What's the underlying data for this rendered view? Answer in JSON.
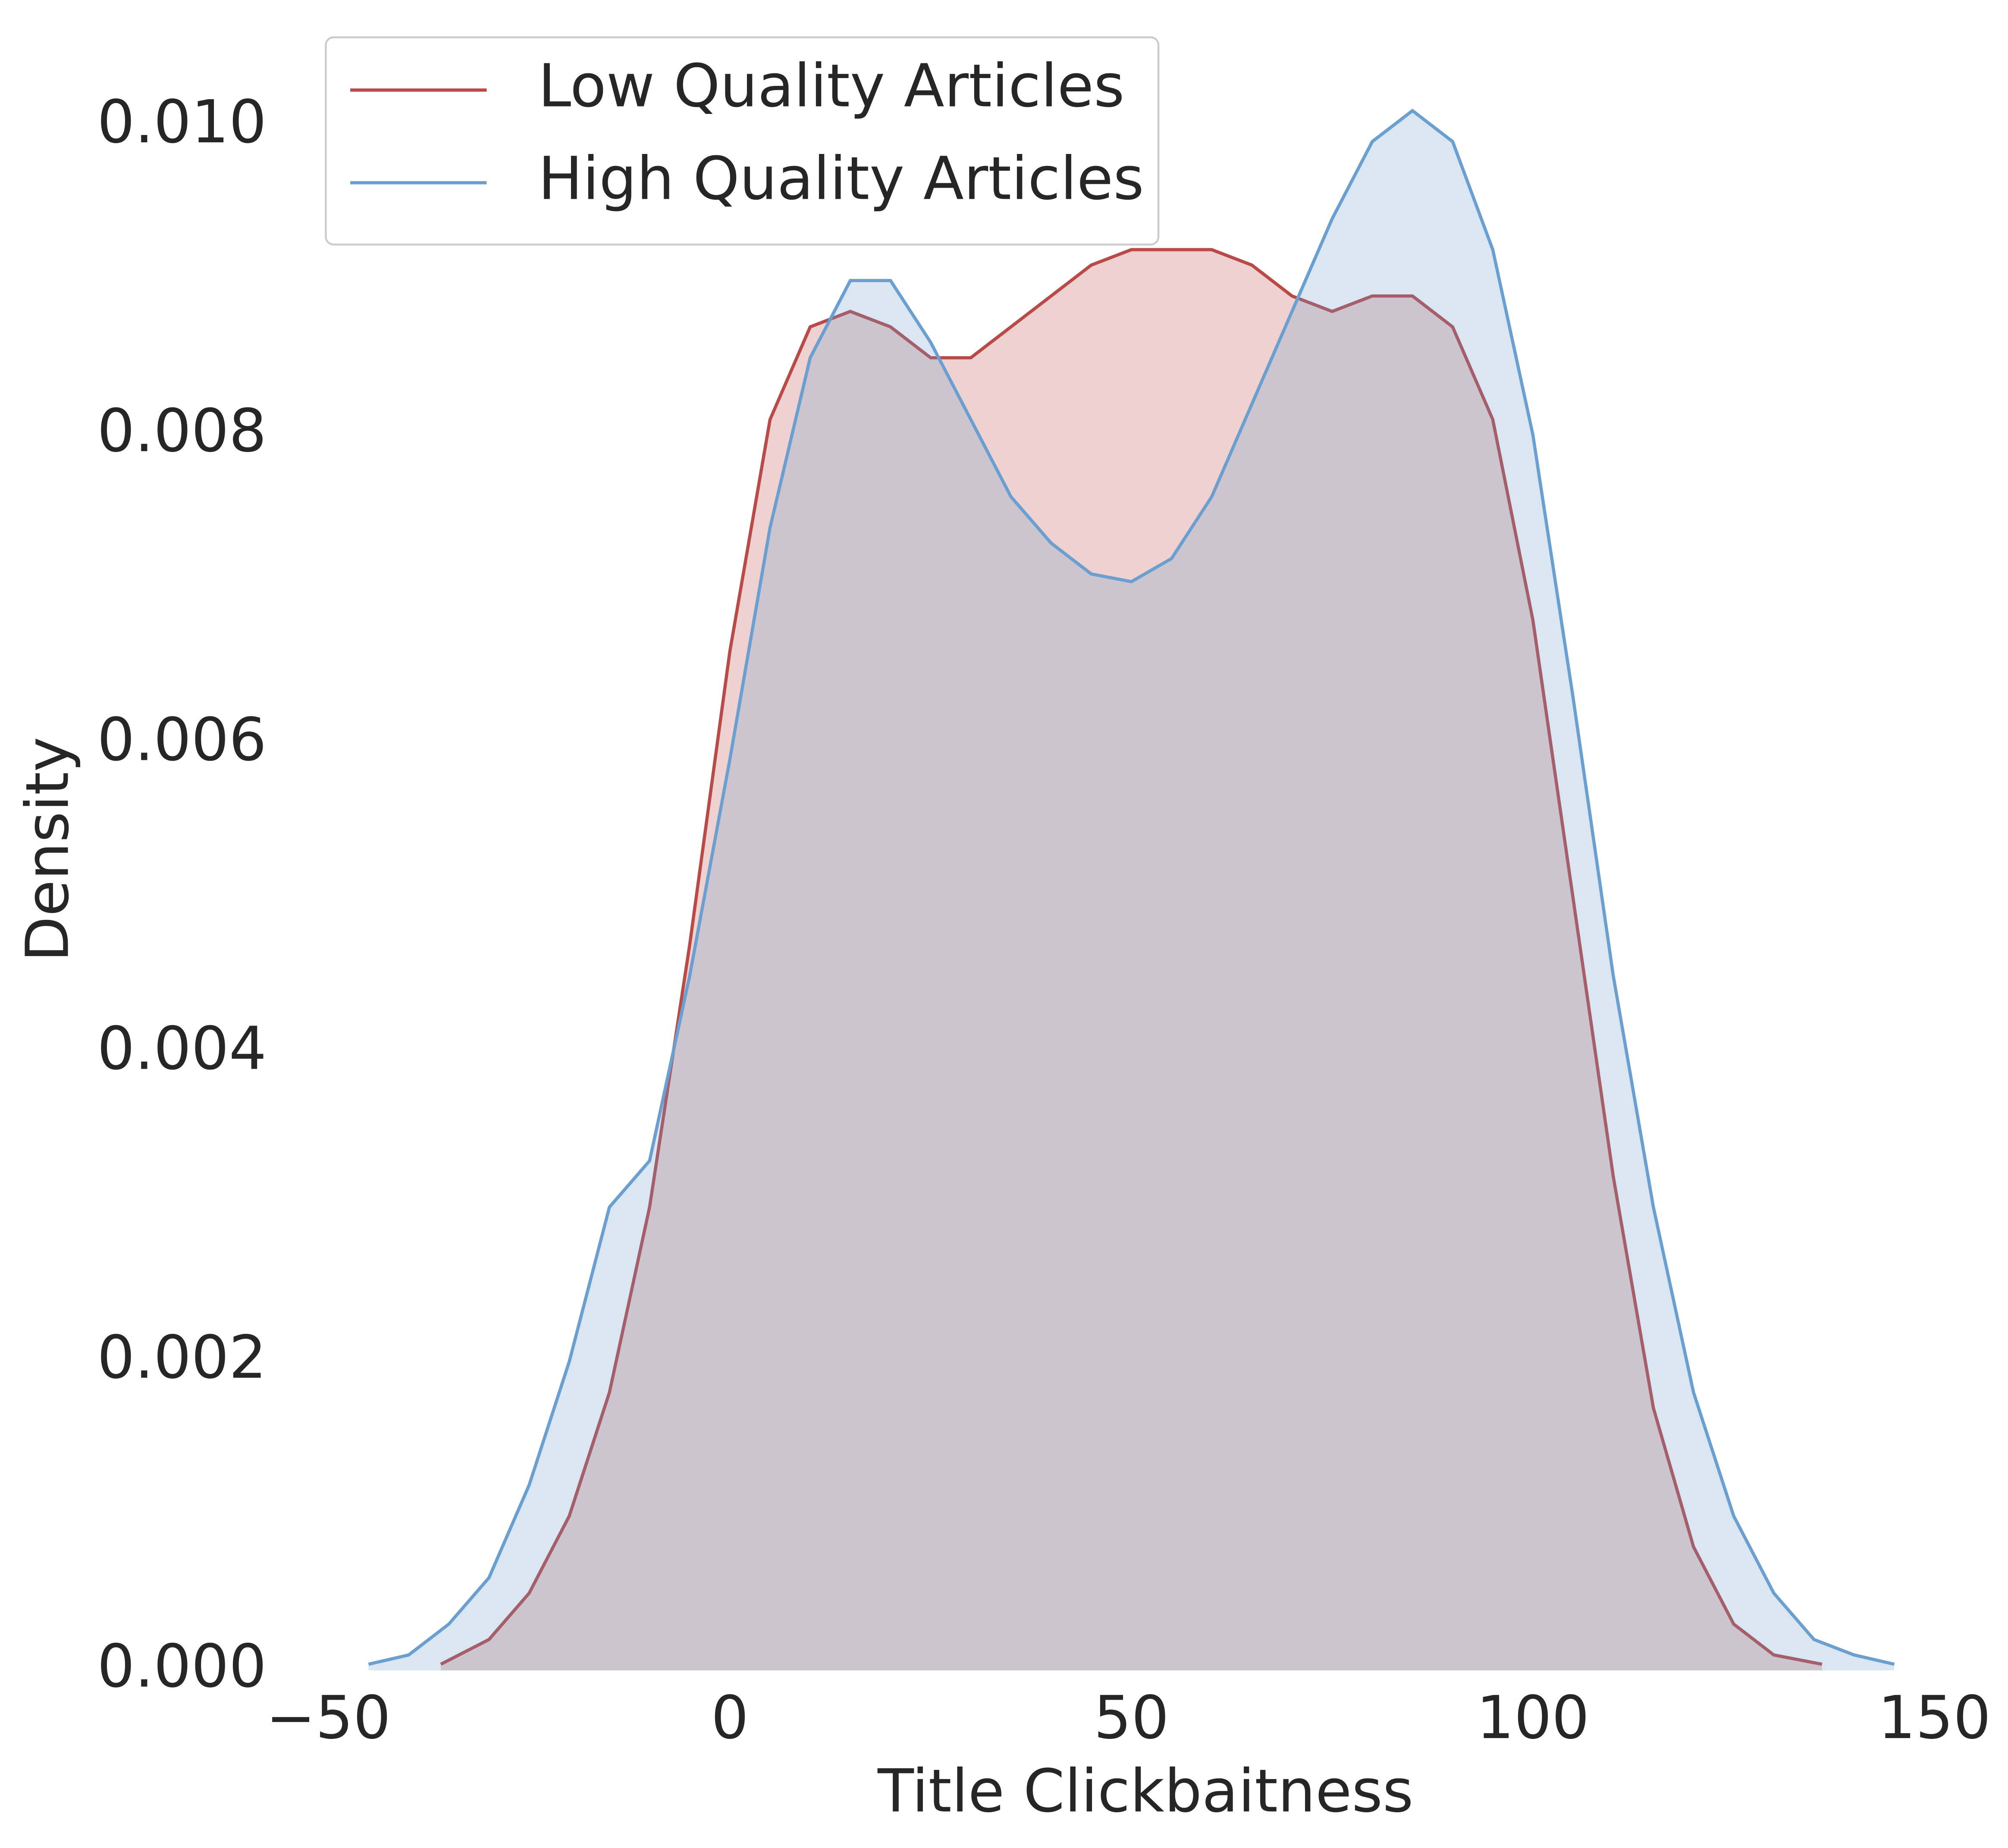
{
  "chart_data": {
    "type": "kde",
    "x_label": "Title Clickbaitness",
    "y_label": "Density",
    "xlim": [
      -50,
      150
    ],
    "ylim": [
      0,
      0.0105
    ],
    "xticks": [
      {
        "value": -50,
        "label": "−50"
      },
      0,
      50,
      100,
      150
    ],
    "yticks": [
      {
        "value": 0,
        "label": "0.000"
      },
      {
        "value": 0.002,
        "label": "0.002"
      },
      {
        "value": 0.004,
        "label": "0.004"
      },
      {
        "value": 0.006,
        "label": "0.006"
      },
      {
        "value": 0.008,
        "label": "0.008"
      },
      {
        "value": 0.01,
        "label": "0.010"
      }
    ],
    "grid": false,
    "legend": "upper left",
    "series": [
      {
        "name": "Low Quality Articles",
        "color": "#b94a48",
        "x": [
          -36,
          -30,
          -25,
          -20,
          -15,
          -10,
          -5,
          0,
          5,
          10,
          15,
          20,
          25,
          30,
          35,
          40,
          45,
          50,
          55,
          60,
          65,
          70,
          75,
          80,
          85,
          90,
          95,
          100,
          105,
          110,
          115,
          120,
          125,
          130,
          136
        ],
        "values": [
          4e-05,
          0.0002,
          0.0005,
          0.001,
          0.0018,
          0.003,
          0.0047,
          0.0066,
          0.0081,
          0.0087,
          0.0088,
          0.0087,
          0.0085,
          0.0085,
          0.0087,
          0.0089,
          0.0091,
          0.0092,
          0.0092,
          0.0092,
          0.0091,
          0.0089,
          0.0088,
          0.0089,
          0.0089,
          0.0087,
          0.0081,
          0.0068,
          0.005,
          0.0032,
          0.0017,
          0.0008,
          0.0003,
          0.0001,
          4e-05
        ]
      },
      {
        "name": "High Quality Articles",
        "color": "#6a9fcf",
        "x": [
          -45,
          -40,
          -35,
          -30,
          -25,
          -20,
          -15,
          -10,
          -5,
          0,
          5,
          10,
          15,
          20,
          25,
          30,
          35,
          40,
          45,
          50,
          55,
          60,
          65,
          70,
          75,
          80,
          85,
          90,
          95,
          100,
          105,
          110,
          115,
          120,
          125,
          130,
          135,
          140,
          145
        ],
        "values": [
          4e-05,
          0.0001,
          0.0003,
          0.0006,
          0.0012,
          0.002,
          0.003,
          0.0033,
          0.0045,
          0.0059,
          0.0074,
          0.0085,
          0.009,
          0.009,
          0.0086,
          0.0081,
          0.0076,
          0.0073,
          0.0071,
          0.00705,
          0.0072,
          0.0076,
          0.0082,
          0.0088,
          0.0094,
          0.0099,
          0.0101,
          0.0099,
          0.0092,
          0.008,
          0.0063,
          0.0045,
          0.003,
          0.0018,
          0.001,
          0.0005,
          0.0002,
          0.0001,
          4e-05
        ]
      }
    ]
  }
}
